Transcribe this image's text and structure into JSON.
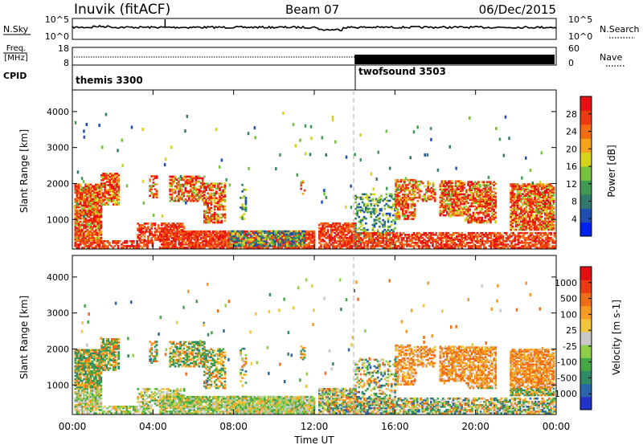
{
  "header": {
    "station": "Inuvik (fitACF)",
    "beam": "Beam 07",
    "date": "06/Dec/2015"
  },
  "panels": {
    "nsky": {
      "label": "N.Sky",
      "ticks": [
        "10^5",
        "10^0"
      ],
      "right_label": "N.Search",
      "right_ticks": [
        "10^5",
        "10^0"
      ]
    },
    "freq": {
      "label_line1": "Freq.",
      "label_line2": "[MHz]",
      "ticks": [
        "18",
        "8"
      ],
      "right_label": "Nave",
      "right_ticks": [
        "60",
        "0"
      ]
    },
    "cpid": {
      "label": "CPID",
      "segments": [
        {
          "name": "themis 3300",
          "start_hour": 0,
          "end_hour": 14
        },
        {
          "name": "twofsound 3503",
          "start_hour": 14,
          "end_hour": 24
        }
      ]
    }
  },
  "chart_data": [
    {
      "type": "heatmap",
      "title": "",
      "xlabel": "Time UT",
      "ylabel": "Slant Range [km]",
      "xlim": [
        0,
        24
      ],
      "ylim": [
        180,
        4600
      ],
      "x_ticks": [
        "00:00",
        "04:00",
        "08:00",
        "12:00",
        "16:00",
        "20:00",
        "00:00"
      ],
      "y_ticks": [
        "1000",
        "2000",
        "3000",
        "4000"
      ],
      "colorbar": {
        "label": "Power [dB]",
        "range": [
          0,
          32
        ],
        "tick_labels": [
          "4",
          "8",
          "12",
          "16",
          "20",
          "24",
          "28"
        ],
        "colors": [
          "#0022ee",
          "#1e4fb0",
          "#2f7a6c",
          "#3f9b52",
          "#76c23c",
          "#d7d21c",
          "#f6a21a",
          "#f46c12",
          "#ee3a10",
          "#e81010"
        ]
      }
    },
    {
      "type": "heatmap",
      "title": "",
      "xlabel": "Time UT",
      "ylabel": "Slant Range [km]",
      "xlim": [
        0,
        24
      ],
      "ylim": [
        180,
        4600
      ],
      "x_ticks": [
        "00:00",
        "04:00",
        "08:00",
        "12:00",
        "16:00",
        "20:00",
        "00:00"
      ],
      "y_ticks": [
        "1000",
        "2000",
        "3000",
        "4000"
      ],
      "colorbar": {
        "label": "Velocity [m s-1]",
        "tick_labels": [
          "1000",
          "500",
          "100",
          "25",
          "-25",
          "-100",
          "-500",
          "-1000"
        ],
        "colors": [
          "#2233cc",
          "#2a66a8",
          "#2f8a66",
          "#45a846",
          "#8ed04a",
          "#c8c8c8",
          "#f2c43a",
          "#f59a22",
          "#f06c16",
          "#ec3a12",
          "#e41010"
        ]
      }
    }
  ]
}
